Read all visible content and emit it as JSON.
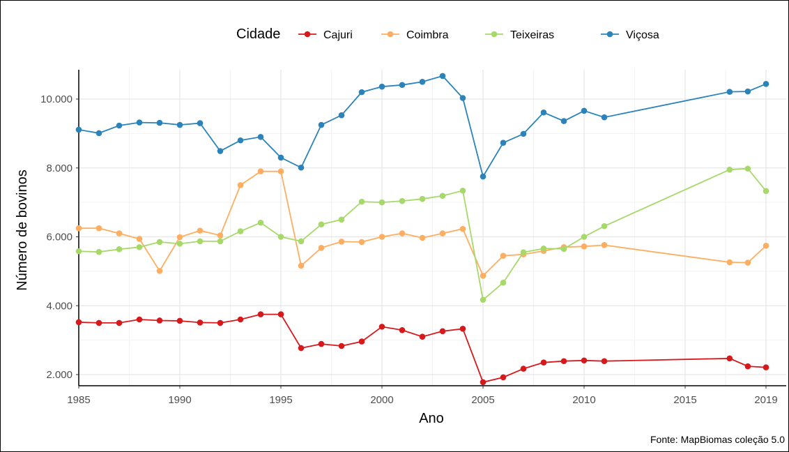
{
  "chart_data": {
    "type": "line",
    "title": "",
    "xlabel": "Ano",
    "ylabel": "Número de bovinos",
    "caption": "Fonte: MapBiomas coleção 5.0",
    "legend": {
      "title": "Cidade",
      "position": "top"
    },
    "xlim": [
      1985,
      2019
    ],
    "ylim": [
      1600,
      10800
    ],
    "x_ticks": [
      1985,
      1990,
      1995,
      2000,
      2005,
      2010,
      2015,
      2019
    ],
    "x_tick_labels": [
      "1985",
      "1990",
      "1995",
      "2000",
      "2005",
      "2010",
      "2015",
      "2019"
    ],
    "y_ticks": [
      2000,
      4000,
      6000,
      8000,
      10000
    ],
    "y_tick_labels": [
      "2.000",
      "4.000",
      "6.000",
      "8.000",
      "10.000"
    ],
    "grid": true,
    "series": [
      {
        "name": "Cajuri",
        "color": "#d7191c",
        "points": [
          [
            1985,
            3520
          ],
          [
            1986,
            3500
          ],
          [
            1987,
            3500
          ],
          [
            1988,
            3600
          ],
          [
            1989,
            3570
          ],
          [
            1990,
            3560
          ],
          [
            1991,
            3510
          ],
          [
            1992,
            3500
          ],
          [
            1993,
            3600
          ],
          [
            1994,
            3750
          ],
          [
            1995,
            3750
          ],
          [
            1996,
            2770
          ],
          [
            1997,
            2890
          ],
          [
            1998,
            2830
          ],
          [
            1999,
            2960
          ],
          [
            2000,
            3390
          ],
          [
            2001,
            3290
          ],
          [
            2002,
            3100
          ],
          [
            2003,
            3260
          ],
          [
            2004,
            3330
          ],
          [
            2005,
            1780
          ],
          [
            2006,
            1920
          ],
          [
            2007,
            2170
          ],
          [
            2008,
            2350
          ],
          [
            2009,
            2390
          ],
          [
            2010,
            2410
          ],
          [
            2011,
            2390
          ],
          [
            2017.2,
            2470
          ],
          [
            2018.1,
            2240
          ],
          [
            2019,
            2210
          ]
        ]
      },
      {
        "name": "Coimbra",
        "color": "#fdae61",
        "points": [
          [
            1985,
            6250
          ],
          [
            1986,
            6250
          ],
          [
            1987,
            6100
          ],
          [
            1988,
            5940
          ],
          [
            1989,
            5010
          ],
          [
            1990,
            5990
          ],
          [
            1991,
            6180
          ],
          [
            1992,
            6040
          ],
          [
            1993,
            7500
          ],
          [
            1994,
            7900
          ],
          [
            1995,
            7900
          ],
          [
            1996,
            5160
          ],
          [
            1997,
            5680
          ],
          [
            1998,
            5860
          ],
          [
            1999,
            5850
          ],
          [
            2000,
            6000
          ],
          [
            2001,
            6100
          ],
          [
            2002,
            5970
          ],
          [
            2003,
            6100
          ],
          [
            2004,
            6230
          ],
          [
            2005,
            4870
          ],
          [
            2006,
            5450
          ],
          [
            2007,
            5490
          ],
          [
            2008,
            5590
          ],
          [
            2009,
            5700
          ],
          [
            2010,
            5720
          ],
          [
            2011,
            5760
          ],
          [
            2017.2,
            5260
          ],
          [
            2018.1,
            5250
          ],
          [
            2019,
            5740
          ]
        ]
      },
      {
        "name": "Teixeiras",
        "color": "#a6d96a",
        "points": [
          [
            1985,
            5580
          ],
          [
            1986,
            5560
          ],
          [
            1987,
            5640
          ],
          [
            1988,
            5700
          ],
          [
            1989,
            5850
          ],
          [
            1990,
            5800
          ],
          [
            1991,
            5870
          ],
          [
            1992,
            5870
          ],
          [
            1993,
            6160
          ],
          [
            1994,
            6410
          ],
          [
            1995,
            6000
          ],
          [
            1996,
            5870
          ],
          [
            1997,
            6360
          ],
          [
            1998,
            6500
          ],
          [
            1999,
            7020
          ],
          [
            2000,
            7000
          ],
          [
            2001,
            7040
          ],
          [
            2002,
            7100
          ],
          [
            2003,
            7190
          ],
          [
            2004,
            7340
          ],
          [
            2005,
            4170
          ],
          [
            2006,
            4670
          ],
          [
            2007,
            5550
          ],
          [
            2008,
            5660
          ],
          [
            2009,
            5650
          ],
          [
            2010,
            6000
          ],
          [
            2011,
            6310
          ],
          [
            2017.2,
            7950
          ],
          [
            2018.1,
            7980
          ],
          [
            2019,
            7330
          ]
        ]
      },
      {
        "name": "Viçosa",
        "color": "#2b83ba",
        "points": [
          [
            1985,
            9110
          ],
          [
            1986,
            9010
          ],
          [
            1987,
            9230
          ],
          [
            1988,
            9320
          ],
          [
            1989,
            9310
          ],
          [
            1990,
            9250
          ],
          [
            1991,
            9300
          ],
          [
            1992,
            8490
          ],
          [
            1993,
            8800
          ],
          [
            1994,
            8900
          ],
          [
            1995,
            8300
          ],
          [
            1996,
            8010
          ],
          [
            1997,
            9250
          ],
          [
            1998,
            9530
          ],
          [
            1999,
            10200
          ],
          [
            2000,
            10360
          ],
          [
            2001,
            10410
          ],
          [
            2002,
            10500
          ],
          [
            2003,
            10670
          ],
          [
            2004,
            10030
          ],
          [
            2005,
            7750
          ],
          [
            2006,
            8730
          ],
          [
            2007,
            8990
          ],
          [
            2008,
            9610
          ],
          [
            2009,
            9360
          ],
          [
            2010,
            9660
          ],
          [
            2011,
            9470
          ],
          [
            2017.2,
            10210
          ],
          [
            2018.1,
            10220
          ],
          [
            2019,
            10440
          ]
        ]
      }
    ]
  }
}
